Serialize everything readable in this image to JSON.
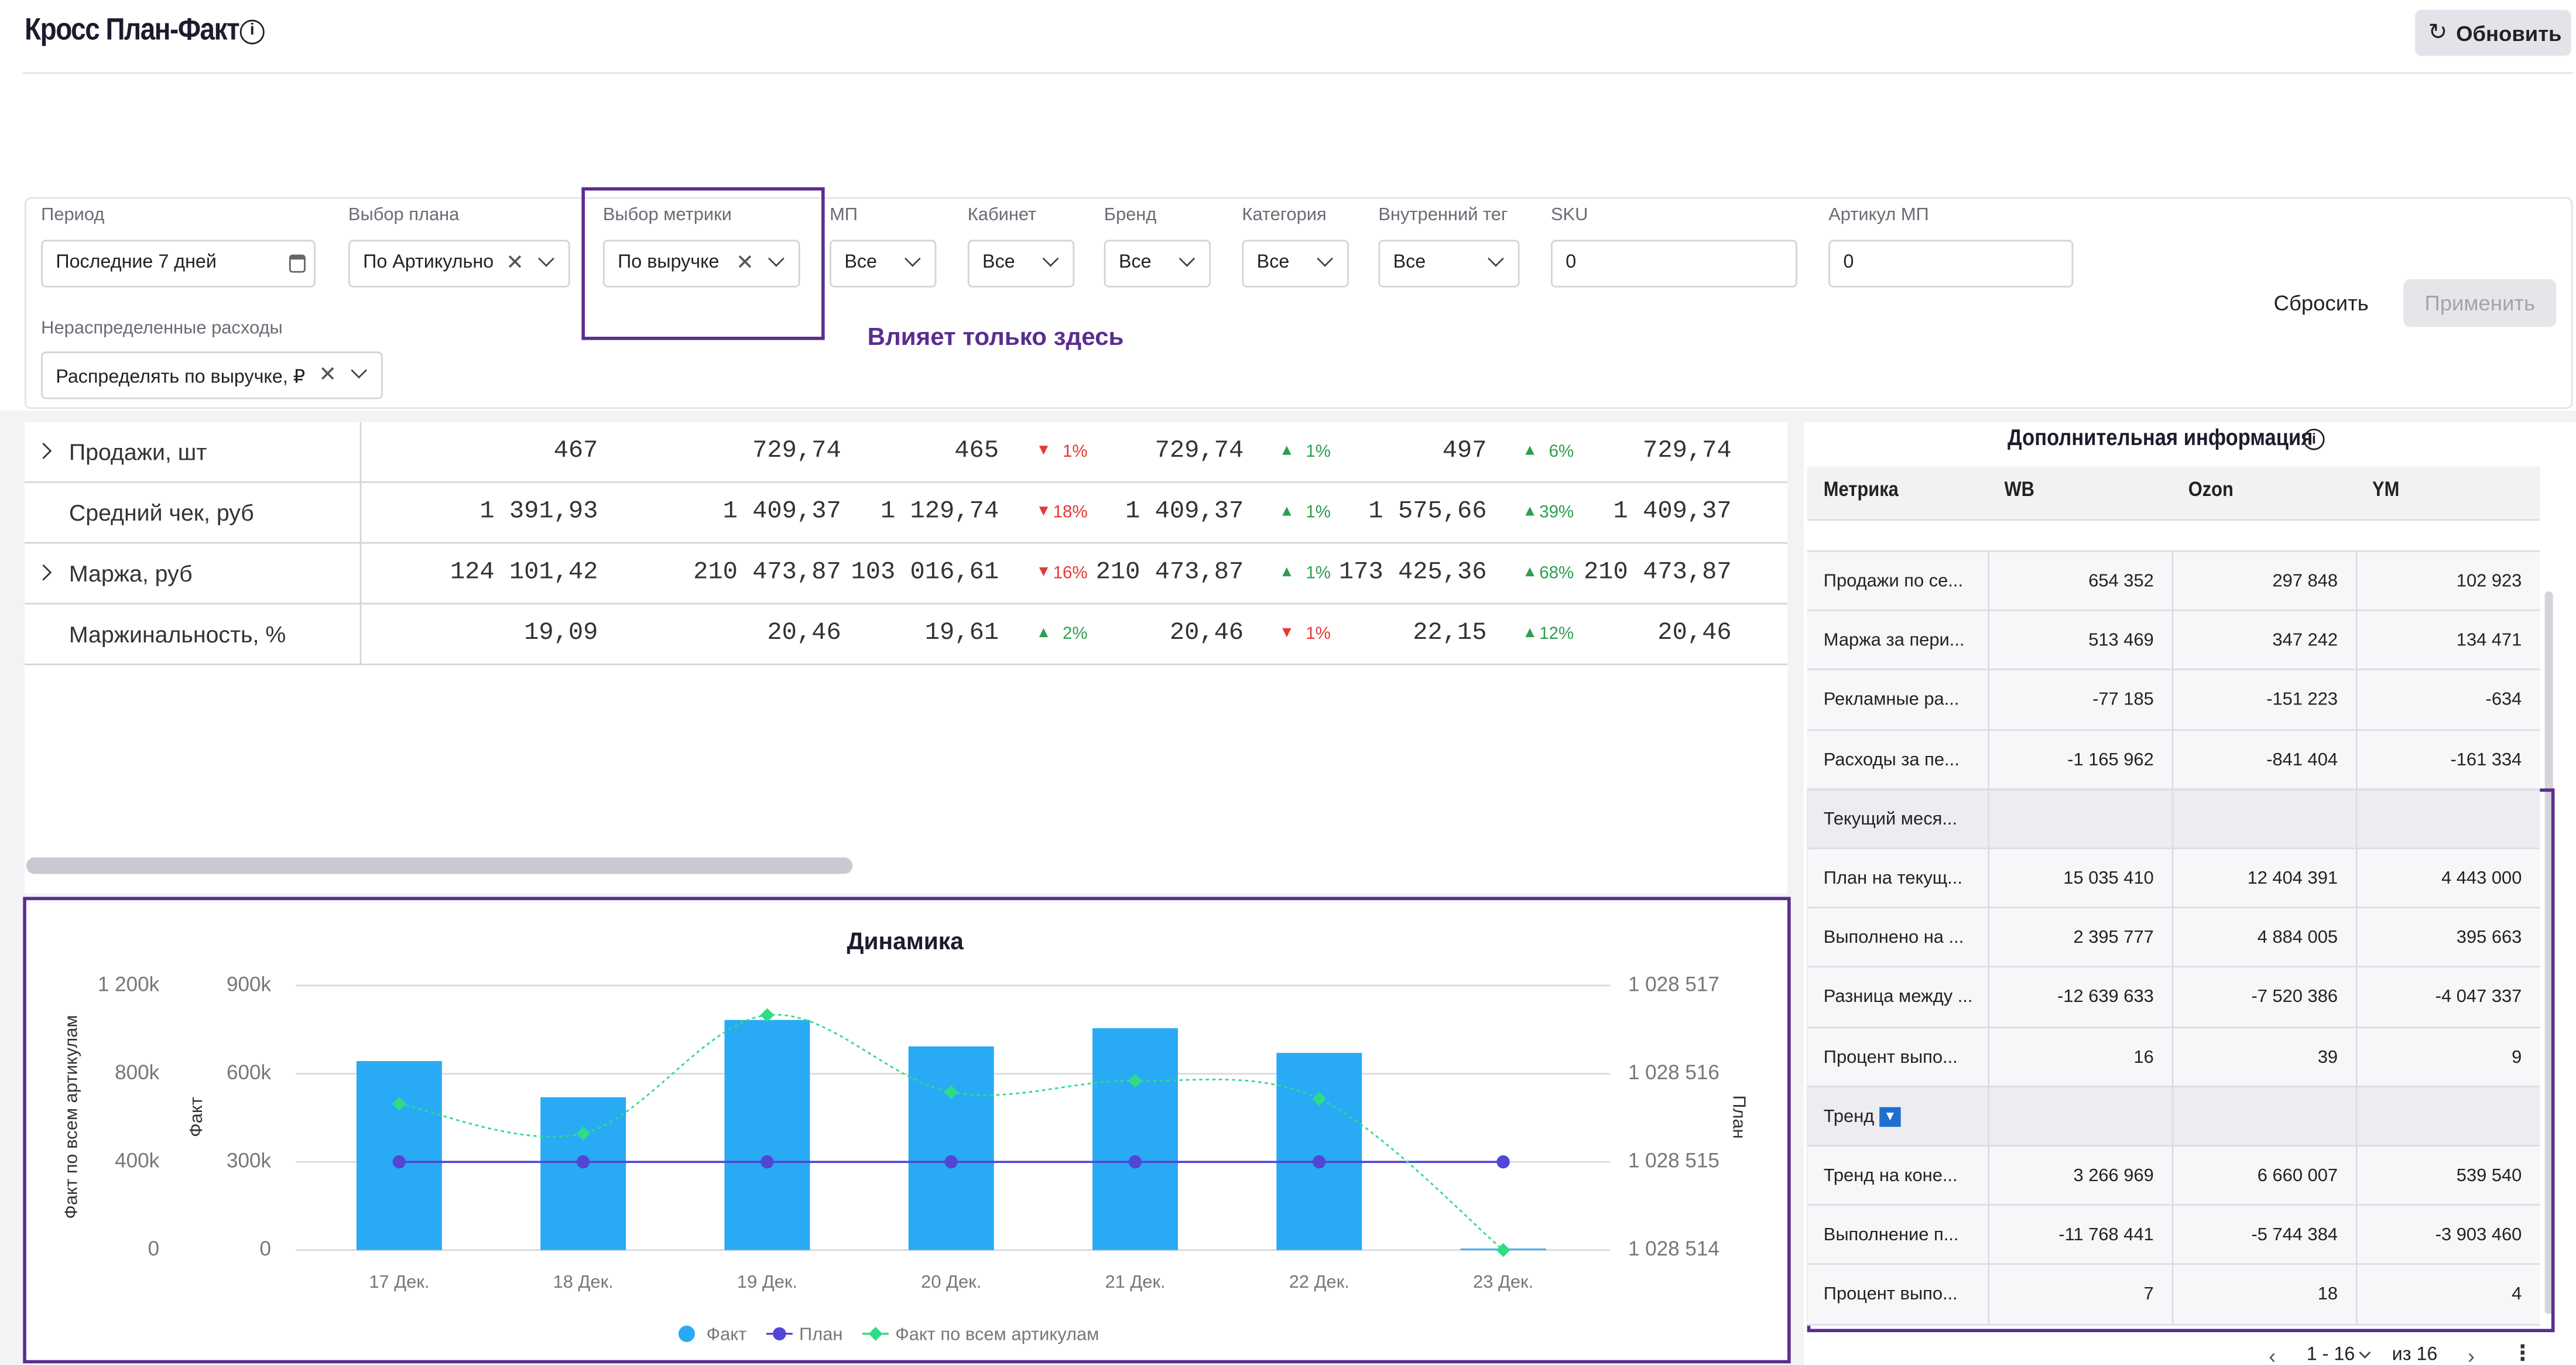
{
  "header": {
    "title": "Кросс План-Факт",
    "refresh": "Обновить"
  },
  "filters": [
    {
      "label": "Период",
      "value": "Последние 7 дней"
    },
    {
      "label": "Выбор плана",
      "value": "По Артикульно"
    },
    {
      "label": "Выбор метрики",
      "value": "По выручке"
    },
    {
      "label": "МП",
      "value": "Все"
    },
    {
      "label": "Кабинет",
      "value": "Все"
    },
    {
      "label": "Бренд",
      "value": "Все"
    },
    {
      "label": "Категория",
      "value": "Все"
    },
    {
      "label": "Внутренний тег",
      "value": "Все"
    },
    {
      "label": "SKU",
      "value": "0"
    },
    {
      "label": "Артикул МП",
      "value": "0"
    },
    {
      "label": "Нераспределенные расходы",
      "value": "Распределять по выручке, ₽"
    }
  ],
  "annotation": "Влияет только здесь",
  "actions": {
    "reset": "Сбросить",
    "apply": "Применить"
  },
  "main_table": {
    "rows": [
      {
        "label": "Продажи, шт",
        "expandable": true,
        "cells": [
          "467",
          "729,74",
          "465",
          {
            "text": "1%",
            "trend": "down"
          },
          "729,74",
          {
            "text": "1%",
            "trend": "up"
          },
          "497",
          {
            "text": "6%",
            "trend": "up"
          },
          "729,74"
        ]
      },
      {
        "label": "Средний чек, руб",
        "expandable": false,
        "cells": [
          "1 391,93",
          "1 409,37",
          "1 129,74",
          {
            "text": "18%",
            "trend": "down"
          },
          "1 409,37",
          {
            "text": "1%",
            "trend": "up"
          },
          "1 575,66",
          {
            "text": "39%",
            "trend": "up"
          },
          "1 409,37"
        ]
      },
      {
        "label": "Маржа, руб",
        "expandable": true,
        "cells": [
          "124 101,42",
          "210 473,87",
          "103 016,61",
          {
            "text": "16%",
            "trend": "down"
          },
          "210 473,87",
          {
            "text": "1%",
            "trend": "up"
          },
          "173 425,36",
          {
            "text": "68%",
            "trend": "up"
          },
          "210 473,87"
        ]
      },
      {
        "label": "Маржинальность, %",
        "expandable": false,
        "cells": [
          "19,09",
          "20,46",
          "19,61",
          {
            "text": "2%",
            "trend": "up"
          },
          "20,46",
          {
            "text": "1%",
            "trend": "down"
          },
          "22,15",
          {
            "text": "12%",
            "trend": "up"
          },
          "20,46"
        ]
      }
    ]
  },
  "chart_data": {
    "type": "bar",
    "title": "Динамика",
    "categories": [
      "17 Дек.",
      "18 Дек.",
      "19 Дек.",
      "20 Дек.",
      "21 Дек.",
      "22 Дек.",
      "23 Дек."
    ],
    "y_label": "Факт",
    "ylim": [
      0,
      900000
    ],
    "yticks": [
      0,
      {
        "value": 300000,
        "label": "300k"
      },
      {
        "value": 600000,
        "label": "600k"
      },
      {
        "value": 900000,
        "label": "900k"
      }
    ],
    "y3_label": "Факт по всем артикулам",
    "y3lim": [
      0,
      1200000
    ],
    "y3ticks": [
      0,
      {
        "value": 400000,
        "label": "400k"
      },
      {
        "value": 800000,
        "label": "800k"
      },
      {
        "value": 1200000,
        "label": "1 200k"
      }
    ],
    "y2_label": "План",
    "y2lim": [
      1028514,
      1028517
    ],
    "y2ticks": [
      {
        "value": 1028514,
        "label": "1 028 514"
      },
      {
        "value": 1028515,
        "label": "1 028 515"
      },
      {
        "value": 1028516,
        "label": "1 028 516"
      },
      {
        "value": 1028517,
        "label": "1 028 517"
      }
    ],
    "grid": true,
    "legend": "bottom",
    "series": [
      {
        "name": "Факт",
        "type": "bar",
        "axis": "y",
        "color": "#29aaf4",
        "values": [
          643000,
          520000,
          783000,
          693000,
          755000,
          671000,
          5000
        ]
      },
      {
        "name": "План",
        "type": "line",
        "axis": "y2",
        "color": "#5346d6",
        "values": [
          1028515,
          1028515,
          1028515,
          1028515,
          1028515,
          1028515,
          1028515
        ]
      },
      {
        "name": "Факт по всем артикулам",
        "type": "line",
        "axis": "y3",
        "color": "#2fdc86",
        "values": [
          663000,
          529000,
          1066000,
          716000,
          768000,
          686000,
          0
        ]
      }
    ]
  },
  "info_panel": {
    "title": "Дополнительная информация",
    "columns": [
      "Метрика",
      "WB",
      "Ozon",
      "YM"
    ],
    "rows": [
      {
        "label": "Продажи по се...",
        "values": [
          "654 352",
          "297 848",
          "102 923"
        ]
      },
      {
        "label": "Маржа за пери...",
        "values": [
          "513 469",
          "347 242",
          "134 471"
        ]
      },
      {
        "label": "Рекламные ра...",
        "values": [
          "-77 185",
          "-151 223",
          "-634"
        ]
      },
      {
        "label": "Расходы за пе...",
        "values": [
          "-1 165 962",
          "-841 404",
          "-161 334"
        ]
      },
      {
        "label": "Текущий меся..."
      },
      {
        "label": "План на текущ...",
        "values": [
          "15 035 410",
          "12 404 391",
          "4 443 000"
        ]
      },
      {
        "label": "Выполнено на ...",
        "values": [
          "2 395 777",
          "4 884 005",
          "395 663"
        ]
      },
      {
        "label": "Разница между ...",
        "values": [
          "-12 639 633",
          "-7 520 386",
          "-4 047 337"
        ]
      },
      {
        "label": "Процент выпо...",
        "values": [
          "16",
          "39",
          "9"
        ]
      },
      {
        "label": "Тренд"
      },
      {
        "label": "Тренд на коне...",
        "values": [
          "3 266 969",
          "6 660 007",
          "539 540"
        ]
      },
      {
        "label": "Выполнение п...",
        "values": [
          "-11 768 441",
          "-5 744 384",
          "-3 903 460"
        ]
      },
      {
        "label": "Процент выпо...",
        "values": [
          "7",
          "18",
          "4"
        ]
      }
    ],
    "pagination": {
      "range": "1 - 16",
      "total": "из 16"
    }
  }
}
